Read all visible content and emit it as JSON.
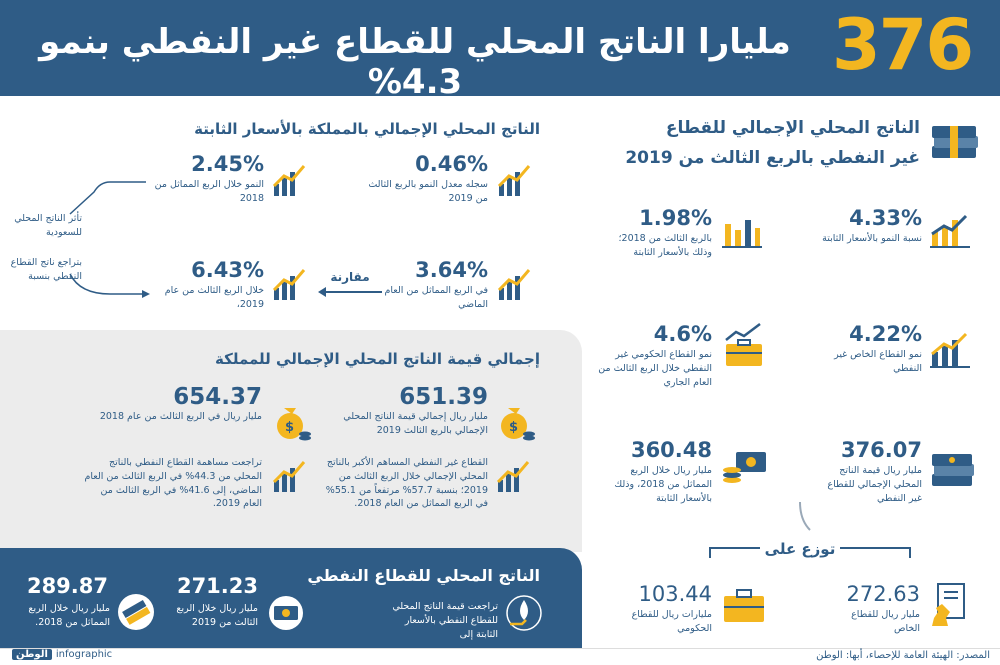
{
  "header": {
    "number": "376",
    "title": "مليارا الناتج المحلي للقطاع غير النفطي بنمو 4.3%"
  },
  "right_section": {
    "title_line1": "الناتج المحلي الإجمالي للقطاع",
    "title_line2": "غير النفطي بالربع الثالث من 2019",
    "items": [
      {
        "value": "4.33%",
        "desc": "نسبة النمو بالأسعار الثابتة"
      },
      {
        "value": "1.98%",
        "desc": "بالربع الثالث من 2018؛ وذلك بالأسعار الثابتة"
      },
      {
        "value": "4.22%",
        "desc": "نمو القطاع الخاص غير النفطي"
      },
      {
        "value": "4.6%",
        "desc": "نمو القطاع الحكومي غير النفطي خلال الربع الثالث من العام الجاري"
      },
      {
        "value": "376.07",
        "desc": "مليار ريال قيمة الناتج المحلي الإجمالي للقطاع غير النفطي"
      },
      {
        "value": "360.48",
        "desc": "مليار ريال خلال الربع المماثل من 2018، وذلك بالأسعار الثابتة"
      }
    ],
    "distribution_label": "توزع على",
    "dist": [
      {
        "value": "272.63",
        "desc": "مليار ريال للقطاع الخاص"
      },
      {
        "value": "103.44",
        "desc": "مليارات ريال للقطاع الحكومي"
      }
    ]
  },
  "left_top": {
    "title": "الناتج المحلي الإجمالي بالمملكة بالأسعار الثابتة",
    "items": [
      {
        "value": "0.46%",
        "desc": "سجله معدل النمو بالربع الثالث من 2019"
      },
      {
        "value": "2.45%",
        "desc": "النمو خلال الربع المماثل من 2018"
      },
      {
        "value": "3.64%",
        "desc": "في الربع المماثل من العام الماضي"
      },
      {
        "value": "6.43%",
        "desc": "خلال الربع الثالث من عام 2019،"
      }
    ],
    "compare_label": "مقارنة",
    "side_note_1": "تأثر الناتج المحلي للسعودية",
    "side_note_2": "بتراجع ناتج القطاع النفطي بنسبة"
  },
  "gray_panel": {
    "title": "إجمالي قيمة الناتج المحلي الإجمالي للمملكة",
    "items": [
      {
        "value": "651.39",
        "desc": "مليار ريال إجمالي قيمة الناتج المحلي الإجمالي بالربع الثالث 2019"
      },
      {
        "value": "654.37",
        "desc": "مليار ريال في الربع الثالث من عام 2018"
      }
    ],
    "para_right": "القطاع غير النفطي المساهم الأكبر بالناتج المحلي الإجمالي خلال الربع الثالث من 2019؛ بنسبة 57.7% مرتفعاً من 55.1% في الربع المماثل من العام 2018.",
    "para_left": "تراجعت مساهمة القطاع النفطي بالناتج المحلي من 44.3% في الربع الثالث من العام الماضي، إلى 41.6% في الربع الثالث من العام 2019."
  },
  "blue_panel": {
    "title": "الناتج المحلي للقطاع النفطي",
    "lead": "تراجعت قيمة الناتج المحلي للقطاع النفطي بالأسعار الثابتة إلى",
    "items": [
      {
        "value": "271.23",
        "desc": "مليار ريال خلال الربع الثالث من 2019"
      },
      {
        "value": "289.87",
        "desc": "مليار ريال خلال الربع المماثل من 2018."
      }
    ]
  },
  "footer": {
    "source": "المصدر: الهيئة العامة للإحصاء، أبها: الوطن",
    "logo": "الوطن",
    "logo_sub": "infographic"
  },
  "colors": {
    "navy": "#2f5c86",
    "gold": "#f3b620",
    "gray": "#ececec"
  }
}
